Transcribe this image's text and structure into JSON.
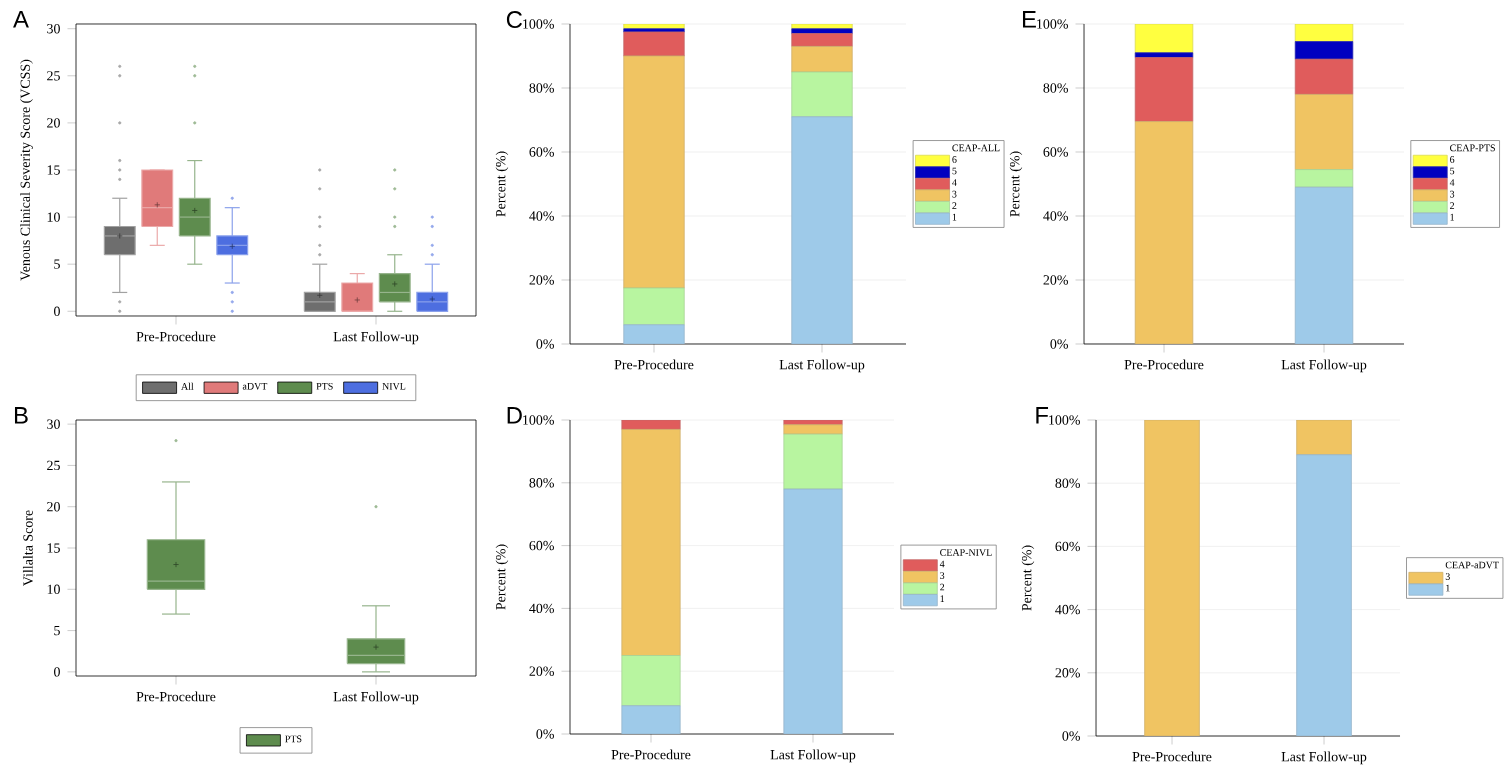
{
  "chart_data": [
    {
      "type": "box",
      "title": "A",
      "ylabel": "Venous Clinical Severity Score (VCSS)",
      "categories": [
        "Pre-Procedure",
        "Last Follow-up"
      ],
      "ylim": [
        -0.5,
        30.5
      ],
      "yticks": [
        0,
        5,
        10,
        15,
        20,
        25,
        30
      ],
      "legend": "bottom",
      "marker": "cross",
      "series": [
        {
          "name": "All",
          "color": "#6e6e6e",
          "boxes": [
            {
              "low": 2,
              "q1": 6,
              "median": 8,
              "q3": 9,
              "high": 12,
              "mean": 8,
              "outliers": [
                0,
                1,
                14,
                15,
                16,
                20,
                25,
                26
              ]
            },
            {
              "low": 0,
              "q1": 0,
              "median": 1,
              "q3": 2,
              "high": 5,
              "mean": 1.7,
              "outliers": [
                6,
                7,
                9,
                10,
                13,
                15
              ]
            }
          ]
        },
        {
          "name": "aDVT",
          "color": "#e07a7a",
          "boxes": [
            {
              "low": 7,
              "q1": 9,
              "median": 11,
              "q3": 15,
              "high": 15,
              "mean": 11.3
            },
            {
              "low": 0,
              "q1": 0,
              "median": 0,
              "q3": 3,
              "high": 4,
              "mean": 1.2
            }
          ]
        },
        {
          "name": "PTS",
          "color": "#5e8c4e",
          "boxes": [
            {
              "low": 5,
              "q1": 8,
              "median": 10,
              "q3": 12,
              "high": 16,
              "mean": 10.7,
              "outliers": [
                20,
                25,
                26
              ]
            },
            {
              "low": 0,
              "q1": 1,
              "median": 2,
              "q3": 4,
              "high": 6,
              "mean": 2.9,
              "outliers": [
                9,
                10,
                13,
                15
              ]
            }
          ]
        },
        {
          "name": "NIVL",
          "color": "#4d6ee0",
          "boxes": [
            {
              "low": 3,
              "q1": 6,
              "median": 7,
              "q3": 8,
              "high": 11,
              "mean": 6.9,
              "outliers": [
                0,
                1,
                2,
                12
              ]
            },
            {
              "low": 0,
              "q1": 0,
              "median": 1,
              "q3": 2,
              "high": 5,
              "mean": 1.3,
              "outliers": [
                6,
                7,
                9,
                10
              ]
            }
          ]
        }
      ]
    },
    {
      "type": "box",
      "title": "B",
      "ylabel": "Villalta Score",
      "categories": [
        "Pre-Procedure",
        "Last Follow-up"
      ],
      "ylim": [
        -0.5,
        30.5
      ],
      "yticks": [
        0,
        5,
        10,
        15,
        20,
        25,
        30
      ],
      "legend": "bottom",
      "marker": "cross",
      "series": [
        {
          "name": "PTS",
          "color": "#5e8c4e",
          "boxes": [
            {
              "low": 7,
              "q1": 10,
              "median": 11,
              "q3": 16,
              "high": 23,
              "mean": 13,
              "outliers": [
                28
              ]
            },
            {
              "low": 0,
              "q1": 1,
              "median": 2,
              "q3": 4,
              "high": 8,
              "mean": 3,
              "outliers": [
                20
              ]
            }
          ]
        }
      ]
    },
    {
      "type": "bar",
      "stacked": true,
      "title": "C",
      "ylabel": "Percent (%)",
      "legend_title": "CEAP-ALL",
      "legend": "right",
      "grid": "y",
      "categories": [
        "Pre-Procedure",
        "Last Follow-up"
      ],
      "ylim": [
        0,
        100
      ],
      "yticks": [
        {
          "value": 0,
          "label": "0%"
        },
        {
          "value": 20,
          "label": "20%"
        },
        {
          "value": 40,
          "label": "40%"
        },
        {
          "value": 60,
          "label": "60%"
        },
        {
          "value": 80,
          "label": "80%"
        },
        {
          "value": 100,
          "label": "100%"
        }
      ],
      "series": [
        {
          "name": "1",
          "color": "#9ecae9",
          "values": [
            6,
            71
          ]
        },
        {
          "name": "2",
          "color": "#b8f5a0",
          "values": [
            11.5,
            14
          ]
        },
        {
          "name": "3",
          "color": "#f0c462",
          "values": [
            72.5,
            8
          ]
        },
        {
          "name": "4",
          "color": "#e05c5c",
          "values": [
            7.5,
            4
          ]
        },
        {
          "name": "5",
          "color": "#0000c0",
          "values": [
            1,
            1.5
          ]
        },
        {
          "name": "6",
          "color": "#ffff40",
          "values": [
            1.5,
            1.5
          ]
        }
      ]
    },
    {
      "type": "bar",
      "stacked": true,
      "title": "D",
      "ylabel": "Percent (%)",
      "legend_title": "CEAP-NIVL",
      "legend": "right",
      "grid": "y",
      "categories": [
        "Pre-Procedure",
        "Last Follow-up"
      ],
      "ylim": [
        0,
        100
      ],
      "yticks": [
        {
          "value": 0,
          "label": "0%"
        },
        {
          "value": 20,
          "label": "20%"
        },
        {
          "value": 40,
          "label": "40%"
        },
        {
          "value": 60,
          "label": "60%"
        },
        {
          "value": 80,
          "label": "80%"
        },
        {
          "value": 100,
          "label": "100%"
        }
      ],
      "series": [
        {
          "name": "1",
          "color": "#9ecae9",
          "values": [
            9,
            78
          ]
        },
        {
          "name": "2",
          "color": "#b8f5a0",
          "values": [
            16,
            17.5
          ]
        },
        {
          "name": "3",
          "color": "#f0c462",
          "values": [
            72,
            3
          ]
        },
        {
          "name": "4",
          "color": "#e05c5c",
          "values": [
            3,
            1.5
          ]
        }
      ]
    },
    {
      "type": "bar",
      "stacked": true,
      "title": "E",
      "ylabel": "Percent (%)",
      "legend_title": "CEAP-PTS",
      "legend": "right",
      "grid": "y",
      "categories": [
        "Pre-Procedure",
        "Last Follow-up"
      ],
      "ylim": [
        0,
        100
      ],
      "yticks": [
        {
          "value": 0,
          "label": "0%"
        },
        {
          "value": 20,
          "label": "20%"
        },
        {
          "value": 40,
          "label": "40%"
        },
        {
          "value": 60,
          "label": "60%"
        },
        {
          "value": 80,
          "label": "80%"
        },
        {
          "value": 100,
          "label": "100%"
        }
      ],
      "series": [
        {
          "name": "1",
          "color": "#9ecae9",
          "values": [
            0,
            49
          ]
        },
        {
          "name": "2",
          "color": "#b8f5a0",
          "values": [
            0,
            5.5
          ]
        },
        {
          "name": "3",
          "color": "#f0c462",
          "values": [
            69.5,
            23.5
          ]
        },
        {
          "name": "4",
          "color": "#e05c5c",
          "values": [
            20,
            11
          ]
        },
        {
          "name": "5",
          "color": "#0000c0",
          "values": [
            1.5,
            5.5
          ]
        },
        {
          "name": "6",
          "color": "#ffff40",
          "values": [
            9,
            5.5
          ]
        }
      ]
    },
    {
      "type": "bar",
      "stacked": true,
      "title": "F",
      "ylabel": "Percent (%)",
      "legend_title": "CEAP-aDVT",
      "legend": "right",
      "grid": "y",
      "categories": [
        "Pre-Procedure",
        "Last Follow-up"
      ],
      "ylim": [
        0,
        100
      ],
      "yticks": [
        {
          "value": 0,
          "label": "0%"
        },
        {
          "value": 20,
          "label": "20%"
        },
        {
          "value": 40,
          "label": "40%"
        },
        {
          "value": 60,
          "label": "60%"
        },
        {
          "value": 80,
          "label": "80%"
        },
        {
          "value": 100,
          "label": "100%"
        }
      ],
      "series": [
        {
          "name": "1",
          "color": "#9ecae9",
          "values": [
            0,
            89
          ]
        },
        {
          "name": "3",
          "color": "#f0c462",
          "values": [
            100,
            11
          ]
        }
      ]
    }
  ]
}
